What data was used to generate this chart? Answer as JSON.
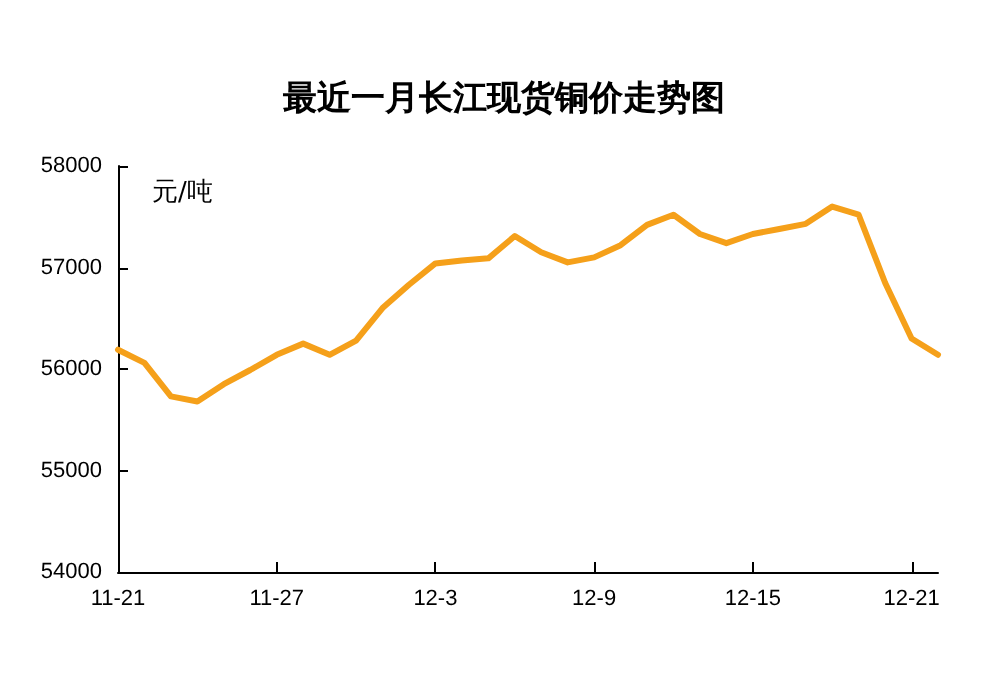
{
  "chart_data": {
    "type": "line",
    "title": "最近一月长江现货铜价走势图",
    "ylabel": "元/吨",
    "categories": [
      "11-21",
      null,
      null,
      null,
      null,
      null,
      "11-27",
      null,
      null,
      null,
      null,
      null,
      "12-3",
      null,
      null,
      null,
      null,
      null,
      "12-9",
      null,
      null,
      null,
      null,
      null,
      "12-15",
      null,
      null,
      null,
      null,
      null,
      "12-21",
      null
    ],
    "series": [
      {
        "color": "#f5a01a",
        "values": [
          56190,
          56060,
          55730,
          55680,
          55850,
          55990,
          56140,
          56250,
          56140,
          56280,
          56600,
          56830,
          57040,
          57070,
          57090,
          57310,
          57150,
          57050,
          57100,
          57220,
          57420,
          57520,
          57330,
          57240,
          57330,
          57380,
          57430,
          57600,
          57520,
          56850,
          56300,
          56140
        ]
      }
    ],
    "ylim": [
      54000,
      58000
    ],
    "yticks": [
      54000,
      55000,
      56000,
      57000,
      58000
    ],
    "grid": false,
    "marker": "none",
    "line_style": "solid"
  }
}
